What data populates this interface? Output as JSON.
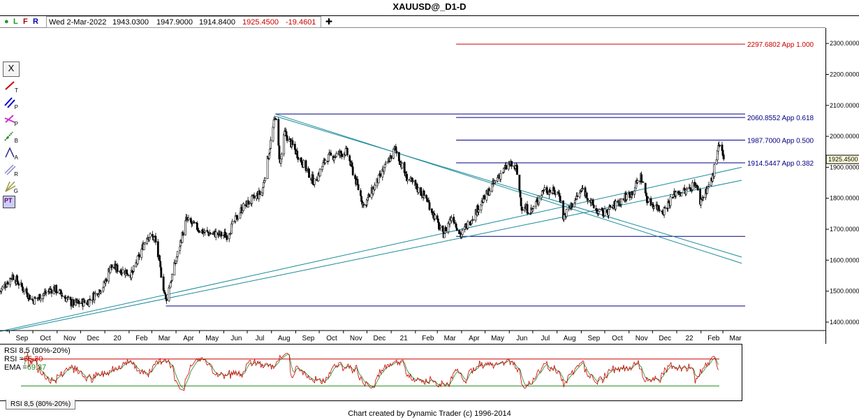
{
  "title": "XAUUSD@_D1-D",
  "infobar": {
    "dot": "●",
    "l": "L",
    "f": "F",
    "r": "R",
    "date": "Wed 2-Mar-2022",
    "open": "1943.0300",
    "high": "1947.9000",
    "low": "1914.8400",
    "close": "1925.4500",
    "change": "-19.4601",
    "plus": "✚"
  },
  "tools": {
    "close": "X",
    "t": "T",
    "p": "P",
    "pa": "P",
    "b": "B",
    "a": "A",
    "r": "R",
    "g": "G",
    "pt": "PT"
  },
  "colors": {
    "candle": "#000000",
    "trendline": "#1a8a9a",
    "fibline": "#000080",
    "target_line": "#cc0000",
    "rsi_line": "#cc0000",
    "ema_line": "#228822"
  },
  "chart_data": {
    "type": "candlestick",
    "title": "XAUUSD@_D1-D",
    "last_price": "1925.4500",
    "ylim": [
      1375,
      2350
    ],
    "y_ticks": [
      "2300.0000",
      "2200.0000",
      "2100.0000",
      "2000.0000",
      "1900.0000",
      "1800.0000",
      "1700.0000",
      "1600.0000",
      "1500.0000",
      "1400.0000"
    ],
    "x_ticks": [
      "Sep",
      "Oct",
      "Nov",
      "Dec",
      "20",
      "Feb",
      "Mar",
      "Apr",
      "May",
      "Jun",
      "Jul",
      "Aug",
      "Sep",
      "Oct",
      "Nov",
      "Dec",
      "21",
      "Feb",
      "Mar",
      "Apr",
      "May",
      "Jun",
      "Jul",
      "Aug",
      "Sep",
      "Oct",
      "Nov",
      "Dec",
      "22",
      "Feb",
      "Mar"
    ],
    "x_range": [
      "2019-08-20",
      "2022-03-25"
    ],
    "price_path": [
      [
        "2019-08-20",
        1500
      ],
      [
        "2019-09-05",
        1550
      ],
      [
        "2019-10-01",
        1470
      ],
      [
        "2019-10-28",
        1510
      ],
      [
        "2019-11-20",
        1460
      ],
      [
        "2019-12-10",
        1465
      ],
      [
        "2019-12-31",
        1520
      ],
      [
        "2020-01-08",
        1580
      ],
      [
        "2020-02-05",
        1555
      ],
      [
        "2020-02-24",
        1680
      ],
      [
        "2020-03-05",
        1670
      ],
      [
        "2020-03-19",
        1470
      ],
      [
        "2020-04-14",
        1730
      ],
      [
        "2020-05-06",
        1690
      ],
      [
        "2020-06-05",
        1680
      ],
      [
        "2020-06-25",
        1770
      ],
      [
        "2020-07-20",
        1820
      ],
      [
        "2020-08-06",
        2070
      ],
      [
        "2020-08-12",
        1910
      ],
      [
        "2020-08-18",
        2010
      ],
      [
        "2020-09-25",
        1850
      ],
      [
        "2020-10-10",
        1930
      ],
      [
        "2020-11-05",
        1950
      ],
      [
        "2020-11-27",
        1775
      ],
      [
        "2020-12-20",
        1880
      ],
      [
        "2021-01-06",
        1960
      ],
      [
        "2021-01-20",
        1870
      ],
      [
        "2021-02-15",
        1800
      ],
      [
        "2021-03-08",
        1680
      ],
      [
        "2021-03-20",
        1745
      ],
      [
        "2021-03-31",
        1680
      ],
      [
        "2021-04-25",
        1780
      ],
      [
        "2021-05-18",
        1870
      ],
      [
        "2021-06-01",
        1910
      ],
      [
        "2021-06-10",
        1895
      ],
      [
        "2021-06-17",
        1770
      ],
      [
        "2021-06-30",
        1760
      ],
      [
        "2021-07-15",
        1830
      ],
      [
        "2021-08-04",
        1815
      ],
      [
        "2021-08-09",
        1740
      ],
      [
        "2021-08-20",
        1780
      ],
      [
        "2021-09-03",
        1830
      ],
      [
        "2021-09-20",
        1760
      ],
      [
        "2021-09-30",
        1750
      ],
      [
        "2021-10-15",
        1780
      ],
      [
        "2021-11-05",
        1820
      ],
      [
        "2021-11-16",
        1870
      ],
      [
        "2021-11-25",
        1790
      ],
      [
        "2021-12-15",
        1760
      ],
      [
        "2021-12-31",
        1820
      ],
      [
        "2022-01-12",
        1820
      ],
      [
        "2022-01-25",
        1850
      ],
      [
        "2022-01-31",
        1790
      ],
      [
        "2022-02-15",
        1860
      ],
      [
        "2022-02-24",
        1970
      ],
      [
        "2022-03-02",
        1925
      ]
    ],
    "horizontal_levels": [
      {
        "label": "2297.6802 App 1.000",
        "price": 2297.68,
        "start": "2021-03-25",
        "color": "red"
      },
      {
        "label": "2060.8552 App 0.618",
        "price": 2060.86,
        "start": "2021-03-25",
        "color": "navy"
      },
      {
        "label": "1987.7000 App 0.500",
        "price": 1987.7,
        "start": "2021-03-25",
        "color": "navy"
      },
      {
        "label": "1914.5447 App 0.382",
        "price": 1914.54,
        "start": "2021-03-25",
        "color": "navy"
      },
      {
        "label": "",
        "price": 2072,
        "start": "2020-08-06",
        "color": "navy"
      },
      {
        "label": "",
        "price": 1677,
        "start": "2021-03-25",
        "color": "navy"
      },
      {
        "label": "",
        "price": 1452,
        "start": "2020-03-19",
        "color": "navy"
      }
    ],
    "trendlines": [
      {
        "from": [
          "2020-08-06",
          2072
        ],
        "to": [
          "2022-03-25",
          1590
        ]
      },
      {
        "from": [
          "2020-08-06",
          2065
        ],
        "to": [
          "2022-03-25",
          1610
        ]
      },
      {
        "from": [
          "2019-08-28",
          1370
        ],
        "to": [
          "2022-03-25",
          1858
        ]
      },
      {
        "from": [
          "2019-08-20",
          1370
        ],
        "to": [
          "2022-03-25",
          1900
        ]
      }
    ],
    "indicator": {
      "name": "RSI 8,5 (80%-20%)",
      "rsi_label": "RSI =",
      "rsi_value": "65.30",
      "ema_label": "EMA =",
      "ema_value": "69.37",
      "upper": 80,
      "lower": 20
    }
  },
  "rsi_tab": "RSI 8,5 (80%-20%)",
  "footer": "Chart created by Dynamic Trader  (c) 1996-2014"
}
